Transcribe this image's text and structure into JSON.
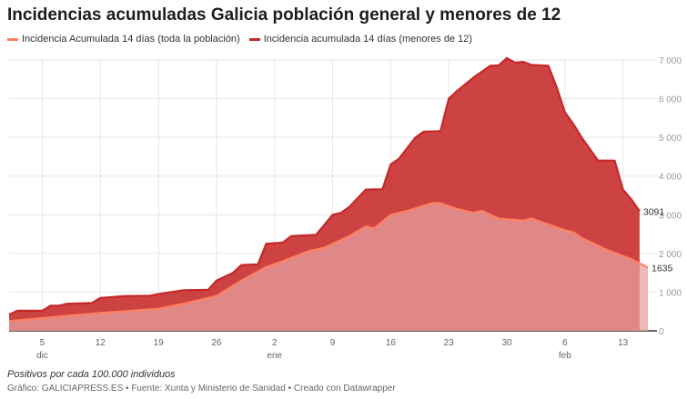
{
  "title": "Incidencias acumuladas Galicia población general y menores de 12",
  "note": "Positivos por cada 100.000 individuos",
  "source": "Gráfico: GALICIAPRESS.ES • Fuente: Xunta y Ministerio de Sanidad • Creado con Datawrapper",
  "chart_data": {
    "type": "area",
    "title": "Incidencias acumuladas Galicia población general y menores de 12",
    "ylabel": "",
    "xlabel": "",
    "ylim": [
      0,
      7000
    ],
    "yticks": [
      0,
      1000,
      2000,
      3000,
      4000,
      5000,
      6000,
      7000
    ],
    "ytick_labels": [
      "0",
      "1 000",
      "2 000",
      "3 000",
      "4 000",
      "5 000",
      "6 000",
      "7 000"
    ],
    "xticks": [
      {
        "date": "2021-12-05",
        "label": "5",
        "month": "dic"
      },
      {
        "date": "2021-12-12",
        "label": "12",
        "month": ""
      },
      {
        "date": "2021-12-19",
        "label": "19",
        "month": ""
      },
      {
        "date": "2021-12-26",
        "label": "26",
        "month": ""
      },
      {
        "date": "2022-01-02",
        "label": "2",
        "month": "ene"
      },
      {
        "date": "2022-01-09",
        "label": "9",
        "month": ""
      },
      {
        "date": "2022-01-16",
        "label": "16",
        "month": ""
      },
      {
        "date": "2022-01-23",
        "label": "23",
        "month": ""
      },
      {
        "date": "2022-01-30",
        "label": "30",
        "month": ""
      },
      {
        "date": "2022-02-06",
        "label": "6",
        "month": "feb"
      },
      {
        "date": "2022-02-13",
        "label": "13",
        "month": ""
      }
    ],
    "xlim": [
      "2021-12-01",
      "2022-02-16"
    ],
    "grid": true,
    "legend_position": "top-left",
    "series": [
      {
        "name": "Incidencia acumulada 14 días (menores de 12)",
        "color": "#c62828",
        "end_label": "3091",
        "points": [
          [
            "2021-12-01",
            420
          ],
          [
            "2021-12-02",
            520
          ],
          [
            "2021-12-05",
            520
          ],
          [
            "2021-12-06",
            650
          ],
          [
            "2021-12-07",
            650
          ],
          [
            "2021-12-08",
            700
          ],
          [
            "2021-12-11",
            720
          ],
          [
            "2021-12-12",
            850
          ],
          [
            "2021-12-15",
            900
          ],
          [
            "2021-12-18",
            910
          ],
          [
            "2021-12-19",
            950
          ],
          [
            "2021-12-22",
            1050
          ],
          [
            "2021-12-25",
            1060
          ],
          [
            "2021-12-26",
            1300
          ],
          [
            "2021-12-28",
            1500
          ],
          [
            "2021-12-29",
            1700
          ],
          [
            "2021-12-31",
            1720
          ],
          [
            "2022-01-01",
            2250
          ],
          [
            "2022-01-03",
            2280
          ],
          [
            "2022-01-04",
            2450
          ],
          [
            "2022-01-07",
            2480
          ],
          [
            "2022-01-09",
            3000
          ],
          [
            "2022-01-10",
            3050
          ],
          [
            "2022-01-11",
            3200
          ],
          [
            "2022-01-13",
            3650
          ],
          [
            "2022-01-15",
            3660
          ],
          [
            "2022-01-16",
            4300
          ],
          [
            "2022-01-17",
            4450
          ],
          [
            "2022-01-19",
            5000
          ],
          [
            "2022-01-20",
            5150
          ],
          [
            "2022-01-22",
            5160
          ],
          [
            "2022-01-23",
            6000
          ],
          [
            "2022-01-24",
            6200
          ],
          [
            "2022-01-26",
            6550
          ],
          [
            "2022-01-28",
            6850
          ],
          [
            "2022-01-29",
            6860
          ],
          [
            "2022-01-30",
            7050
          ],
          [
            "2022-01-31",
            6930
          ],
          [
            "2022-02-01",
            6950
          ],
          [
            "2022-02-02",
            6870
          ],
          [
            "2022-02-04",
            6850
          ],
          [
            "2022-02-05",
            6300
          ],
          [
            "2022-02-06",
            5650
          ],
          [
            "2022-02-07",
            5350
          ],
          [
            "2022-02-08",
            5000
          ],
          [
            "2022-02-09",
            4700
          ],
          [
            "2022-02-10",
            4400
          ],
          [
            "2022-02-12",
            4400
          ],
          [
            "2022-02-13",
            3650
          ],
          [
            "2022-02-14",
            3400
          ],
          [
            "2022-02-15",
            3091
          ]
        ]
      },
      {
        "name": "Incidencia Acumulada 14 días (toda la población)",
        "color": "#ff7f5e",
        "end_label": "1635",
        "points": [
          [
            "2021-12-01",
            250
          ],
          [
            "2021-12-05",
            330
          ],
          [
            "2021-12-12",
            460
          ],
          [
            "2021-12-19",
            570
          ],
          [
            "2021-12-22",
            700
          ],
          [
            "2021-12-26",
            900
          ],
          [
            "2021-12-29",
            1300
          ],
          [
            "2022-01-01",
            1650
          ],
          [
            "2022-01-03",
            1800
          ],
          [
            "2022-01-06",
            2050
          ],
          [
            "2022-01-08",
            2150
          ],
          [
            "2022-01-11",
            2450
          ],
          [
            "2022-01-13",
            2700
          ],
          [
            "2022-01-14",
            2650
          ],
          [
            "2022-01-16",
            3000
          ],
          [
            "2022-01-18",
            3100
          ],
          [
            "2022-01-21",
            3300
          ],
          [
            "2022-01-22",
            3300
          ],
          [
            "2022-01-24",
            3150
          ],
          [
            "2022-01-26",
            3050
          ],
          [
            "2022-01-27",
            3100
          ],
          [
            "2022-01-29",
            2900
          ],
          [
            "2022-02-01",
            2850
          ],
          [
            "2022-02-02",
            2900
          ],
          [
            "2022-02-06",
            2600
          ],
          [
            "2022-02-07",
            2550
          ],
          [
            "2022-02-08",
            2400
          ],
          [
            "2022-02-11",
            2100
          ],
          [
            "2022-02-14",
            1850
          ],
          [
            "2022-02-16",
            1635
          ]
        ]
      }
    ]
  }
}
